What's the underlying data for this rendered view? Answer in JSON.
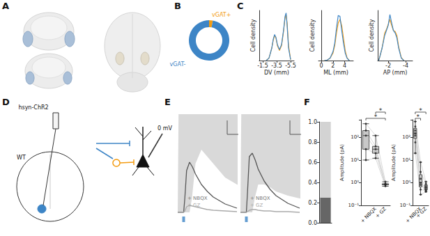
{
  "panel_labels": [
    "A",
    "B",
    "C",
    "D",
    "E",
    "F"
  ],
  "schematic": {
    "virus": "hsyn-ChR2",
    "mouse": "WT",
    "holding": "0 mV"
  },
  "chart_data": [
    {
      "type": "pie",
      "categories": [
        "vGAT+",
        "vGAT-"
      ],
      "values": [
        3,
        97
      ],
      "colors": [
        "#f39c12",
        "#3d85c6"
      ]
    },
    {
      "type": "line",
      "xlabel": "DV (mm)",
      "ylabel": "Cell density",
      "x": [
        -2.0,
        -2.4,
        -2.8,
        -3.0,
        -3.2,
        -3.4,
        -3.6,
        -3.9,
        -4.2,
        -4.5,
        -4.7,
        -4.85,
        -5.0,
        -5.2,
        -5.5
      ],
      "series": [
        {
          "color": "#f39c12",
          "values": [
            0,
            0.05,
            0.25,
            0.4,
            0.5,
            0.45,
            0.3,
            0.2,
            0.3,
            0.6,
            0.85,
            0.92,
            0.75,
            0.3,
            0.02
          ]
        },
        {
          "color": "#3d85c6",
          "values": [
            0,
            0.05,
            0.25,
            0.42,
            0.52,
            0.46,
            0.32,
            0.22,
            0.32,
            0.62,
            0.88,
            0.95,
            0.7,
            0.25,
            0.02
          ]
        }
      ],
      "xlim": [
        -1.0,
        -6.0
      ],
      "xticks": [
        -1.5,
        -3.5,
        -5.5
      ],
      "ylim": [
        0,
        1
      ],
      "tick_labels": "x"
    },
    {
      "type": "line",
      "xlabel": "ML (mm)",
      "ylabel": "Cell density",
      "x": [
        0.5,
        1.0,
        1.5,
        2.0,
        2.3,
        2.6,
        2.9,
        3.2,
        3.5,
        3.8,
        4.1,
        4.4,
        4.8
      ],
      "series": [
        {
          "color": "#f39c12",
          "values": [
            0,
            0.01,
            0.05,
            0.15,
            0.3,
            0.55,
            0.75,
            0.82,
            0.7,
            0.45,
            0.2,
            0.06,
            0
          ]
        },
        {
          "color": "#3d85c6",
          "values": [
            0,
            0.01,
            0.05,
            0.18,
            0.35,
            0.65,
            0.9,
            0.88,
            0.6,
            0.35,
            0.15,
            0.05,
            0
          ]
        }
      ],
      "xlim": [
        -0.5,
        5.5
      ],
      "xticks": [
        0,
        2,
        4
      ],
      "ylim": [
        0,
        1
      ],
      "tick_labels": "x"
    },
    {
      "type": "line",
      "xlabel": "AP (mm)",
      "ylabel": "Cell density",
      "x": [
        -0.9,
        -1.0,
        -1.3,
        -1.6,
        -1.8,
        -2.0,
        -2.2,
        -2.4,
        -2.6,
        -2.8,
        -3.0,
        -3.2,
        -3.5,
        -3.8
      ],
      "series": [
        {
          "color": "#f39c12",
          "values": [
            0,
            0.05,
            0.25,
            0.55,
            0.62,
            0.72,
            0.82,
            0.7,
            0.6,
            0.58,
            0.5,
            0.28,
            0.06,
            0
          ]
        },
        {
          "color": "#3d85c6",
          "values": [
            0,
            0.05,
            0.25,
            0.5,
            0.6,
            0.7,
            0.92,
            0.75,
            0.6,
            0.55,
            0.45,
            0.25,
            0.05,
            0
          ]
        }
      ],
      "xlim": [
        -0.8,
        -4.8
      ],
      "xticks": [
        -2,
        -4
      ],
      "ylim": [
        0,
        1
      ],
      "tick_labels": "x"
    },
    {
      "type": "line",
      "x": [
        0,
        5,
        10,
        12,
        15,
        20,
        25,
        30,
        40,
        50,
        60,
        80,
        100
      ],
      "series": [
        {
          "color": "#555555",
          "values": [
            0,
            0,
            0,
            0.2,
            0.6,
            0.72,
            0.65,
            0.55,
            0.4,
            0.3,
            0.22,
            0.12,
            0.06
          ],
          "error": [
            0,
            0,
            0,
            0.1,
            0.35,
            0.45,
            0.4,
            0.35,
            0.25,
            0.2,
            0.15,
            0.08,
            0.05
          ]
        },
        {
          "color": "#aaaaaa",
          "values": [
            0,
            0,
            0,
            0.02,
            0.08,
            0.1,
            0.09,
            0.08,
            0.06,
            0.04,
            0.03,
            0.02,
            0.01
          ]
        }
      ],
      "xlim": [
        0,
        100
      ],
      "ylim": [
        -0.1,
        1.4
      ],
      "tick_labels": false,
      "stimulus": 10,
      "annotations": [
        "+ NBQX",
        "+ GZ"
      ]
    },
    {
      "type": "line",
      "x": [
        0,
        5,
        10,
        12,
        15,
        20,
        25,
        30,
        40,
        50,
        60,
        80,
        100
      ],
      "series": [
        {
          "color": "#555555",
          "values": [
            0,
            0,
            0,
            0.3,
            0.8,
            0.85,
            0.75,
            0.62,
            0.45,
            0.33,
            0.24,
            0.13,
            0.06
          ],
          "error": [
            0,
            0,
            0,
            0.1,
            0.2,
            0.2,
            0.18,
            0.15,
            0.12,
            0.1,
            0.08,
            0.05,
            0.03
          ]
        },
        {
          "color": "#aaaaaa",
          "values": [
            0,
            0,
            0,
            0.01,
            0.03,
            0.04,
            0.04,
            0.03,
            0.02,
            0.02,
            0.01,
            0.01,
            0
          ]
        }
      ],
      "xlim": [
        0,
        100
      ],
      "ylim": [
        -0.1,
        1.4
      ],
      "tick_labels": false,
      "stimulus": 10,
      "annotations": [
        "+ NBQX",
        "+ GZ"
      ]
    },
    {
      "type": "bar",
      "categories": [
        null
      ],
      "series": [
        {
          "color": "#666666",
          "values": [
            0.25
          ]
        },
        {
          "color": "#d3d3d3",
          "values": [
            0.75
          ]
        }
      ],
      "stacked": true,
      "ylim": [
        0,
        1
      ],
      "yticks": [
        {
          "value": 0,
          "label": "0.0"
        },
        0.2,
        0.4,
        0.6,
        0.8,
        {
          "value": 1,
          "label": "1.0"
        }
      ]
    },
    {
      "type": "boxplot",
      "ylabel": "Amplitude (pA)",
      "categories": [
        null,
        "+ NBQX",
        "+ GZ"
      ],
      "boxes": [
        [
          10,
          30,
          120,
          200,
          400
        ],
        [
          12,
          20,
          30,
          40,
          120
        ],
        [
          0.7,
          0.8,
          0.85,
          0.9,
          1.1
        ]
      ],
      "points": [
        [
          400,
          200,
          120,
          30,
          10
        ],
        [
          120,
          40,
          30,
          20,
          12
        ],
        [
          1.1,
          0.9,
          0.85,
          0.8,
          0.7
        ]
      ],
      "log": "y",
      "ylim": [
        0.1,
        600
      ],
      "yticks": [
        {
          "value": 0.1,
          "label": "10⁻¹"
        },
        {
          "value": 1,
          "label": "10⁰"
        },
        {
          "value": 10,
          "label": "10¹"
        },
        {
          "value": 100,
          "label": "10²"
        }
      ],
      "comparisons": [
        {
          "between": [
            0,
            2
          ],
          "label": "*"
        },
        {
          "between": [
            1,
            2
          ],
          "label": "*"
        }
      ]
    },
    {
      "type": "boxplot",
      "ylabel": "Amplitude (pA)",
      "categories": [
        null,
        "+ NBQX",
        "+ GZ"
      ],
      "boxes": [
        [
          20,
          90,
          150,
          250,
          500
        ],
        [
          0.3,
          0.65,
          1,
          2.25,
          8
        ],
        [
          0.4,
          0.48,
          0.6,
          0.8,
          1.1
        ]
      ],
      "points": [
        [
          500,
          300,
          200,
          150,
          120,
          60,
          20
        ],
        [
          8,
          3,
          1.5,
          1,
          0.8,
          0.5,
          0.3
        ],
        [
          1.1,
          0.9,
          0.7,
          0.6,
          0.5,
          0.45,
          0.4
        ]
      ],
      "log": "y",
      "ylim": [
        0.1,
        600
      ],
      "yticks": [
        {
          "value": 0.1,
          "label": "10⁻¹"
        },
        {
          "value": 1,
          "label": "10⁰"
        },
        {
          "value": 10,
          "label": "10¹"
        },
        {
          "value": 100,
          "label": "10²"
        }
      ],
      "comparisons": [
        {
          "between": [
            0,
            1
          ],
          "label": "*"
        },
        {
          "between": [
            0,
            2
          ],
          "label": "*"
        }
      ]
    }
  ]
}
